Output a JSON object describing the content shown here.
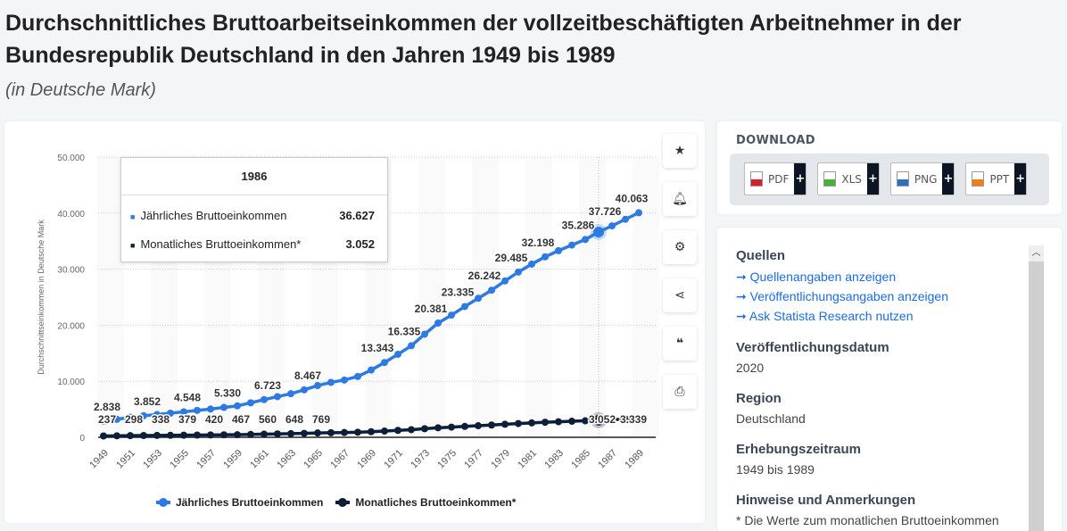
{
  "title": "Durchschnittliches Bruttoarbeitseinkommen der vollzeitbeschäftigten Arbeitnehmer in der Bundesrepublik Deutschland in den Jahren 1949 bis 1989",
  "subtitle": "(in Deutsche Mark)",
  "tools": [
    "star-icon",
    "bell-icon",
    "gear-icon",
    "share-icon",
    "quote-icon",
    "print-icon"
  ],
  "tooltip": {
    "year": "1986",
    "rows": [
      {
        "label": "Jährliches Bruttoeinkommen",
        "value": "36.627"
      },
      {
        "label": "Monatliches Bruttoeinkommen*",
        "value": "3.052"
      }
    ]
  },
  "download": {
    "heading": "DOWNLOAD",
    "buttons": [
      {
        "label": "PDF",
        "color": "#d2232a"
      },
      {
        "label": "XLS",
        "color": "#4caf3a"
      },
      {
        "label": "PNG",
        "color": "#2f6fc0"
      },
      {
        "label": "PPT",
        "color": "#f07f1a"
      }
    ],
    "plus": "+"
  },
  "info": {
    "sources_heading": "Quellen",
    "links": [
      "Quellenangaben anzeigen",
      "Veröffentlichungsangaben anzeigen",
      "Ask Statista Research nutzen"
    ],
    "pubdate_heading": "Veröffentlichungsdatum",
    "pubdate": "2020",
    "region_heading": "Region",
    "region": "Deutschland",
    "period_heading": "Erhebungszeitraum",
    "period": "1949 bis 1989",
    "notes_heading": "Hinweise und Anmerkungen",
    "notes": "* Die Werte zum monatlichen Bruttoeinkommen"
  },
  "chart_data": {
    "type": "line",
    "ylabel": "Durchschnittseinkommen in Deutsche Mark",
    "ylim": [
      0,
      50000
    ],
    "yticks": [
      "0",
      "10.000",
      "20.000",
      "30.000",
      "40.000",
      "50.000"
    ],
    "x": [
      1949,
      1950,
      1951,
      1952,
      1953,
      1954,
      1955,
      1956,
      1957,
      1958,
      1959,
      1960,
      1961,
      1962,
      1963,
      1964,
      1965,
      1966,
      1967,
      1968,
      1969,
      1970,
      1971,
      1972,
      1973,
      1974,
      1975,
      1976,
      1977,
      1978,
      1979,
      1980,
      1981,
      1982,
      1983,
      1984,
      1985,
      1986,
      1987,
      1988,
      1989
    ],
    "xticks": [
      "1949",
      "1951",
      "1953",
      "1955",
      "1957",
      "1959",
      "1961",
      "1963",
      "1965",
      "1967",
      "1969",
      "1971",
      "1973",
      "1975",
      "1977",
      "1979",
      "1981",
      "1983",
      "1985",
      "1987",
      "1989"
    ],
    "series": [
      {
        "name": "Jährliches Bruttoeinkommen",
        "color": "#2d7be0",
        "values": [
          2838,
          3200,
          3576,
          3852,
          4056,
          4300,
          4548,
          4800,
          5040,
          5330,
          5604,
          6150,
          6723,
          7250,
          7776,
          8467,
          9228,
          9800,
          10219,
          10850,
          12000,
          13343,
          14800,
          16335,
          18400,
          20381,
          21800,
          23335,
          24800,
          26242,
          27900,
          29485,
          30900,
          32198,
          33300,
          34300,
          35286,
          36627,
          37726,
          38900,
          40063
        ],
        "labels": {
          "1949": "2.838",
          "1952": "3.852",
          "1955": "4.548",
          "1958": "5.330",
          "1961": "6.723",
          "1964": "8.467",
          "1970": "13.343",
          "1972": "16.335",
          "1974": "20.381",
          "1976": "23.335",
          "1978": "26.242",
          "1980": "29.485",
          "1982": "32.198",
          "1985": "35.286",
          "1987": "37.726",
          "1989": "40.063"
        }
      },
      {
        "name": "Monatliches Bruttoeinkommen*",
        "color": "#0c1f3a",
        "values": [
          237,
          267,
          298,
          321,
          338,
          358,
          379,
          400,
          420,
          444,
          467,
          513,
          560,
          604,
          648,
          706,
          769,
          817,
          852,
          904,
          1000,
          1112,
          1233,
          1361,
          1533,
          1698,
          1817,
          1945,
          2067,
          2187,
          2325,
          2457,
          2575,
          2683,
          2775,
          2858,
          2940,
          3052,
          3144,
          3243,
          3339
        ],
        "labels": {
          "1949": "237",
          "1951": "298",
          "1953": "338",
          "1955": "379",
          "1957": "420",
          "1959": "467",
          "1961": "560",
          "1963": "648",
          "1965": "769",
          "1986": "3.052",
          "1989": "3.339"
        }
      }
    ],
    "highlight": 1986,
    "grid": true,
    "legend": "bottom-center"
  }
}
